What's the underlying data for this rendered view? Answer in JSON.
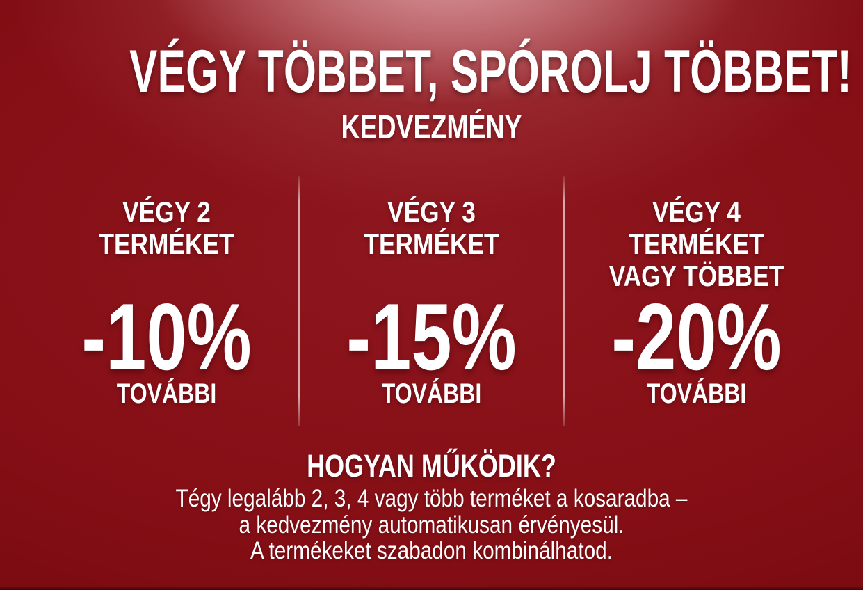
{
  "theme": {
    "background_base": "#8e161e",
    "background_edge": "#73090d",
    "background_highlight": "#d89599",
    "text_color": "#ffffff",
    "divider_color": "#eccdcf"
  },
  "banner": {
    "title": "VÉGY TÖBBET, SPÓROLJ TÖBBET!",
    "subtitle": "KEDVEZMÉNY",
    "tiers": [
      {
        "condition_lines": [
          "VÉGY 2",
          "TERMÉKET"
        ],
        "discount": "-10%",
        "qualifier": "TOVÁBBI"
      },
      {
        "condition_lines": [
          "VÉGY 3",
          "TERMÉKET"
        ],
        "discount": "-15%",
        "qualifier": "TOVÁBBI"
      },
      {
        "condition_lines": [
          "VÉGY 4",
          "TERMÉKET",
          "VAGY TÖBBET"
        ],
        "discount": "-20%",
        "qualifier": "TOVÁBBI"
      }
    ],
    "how_it_works": {
      "heading": "HOGYAN MŰKÖDIK?",
      "lines": [
        "Tégy legalább 2, 3, 4 vagy több terméket a kosaradba –",
        "a kedvezmény automatikusan érvényesül.",
        "A termékeket szabadon kombinálhatod."
      ]
    }
  }
}
